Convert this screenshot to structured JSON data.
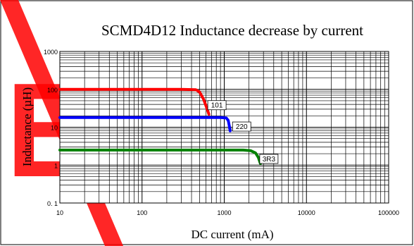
{
  "chart_data": {
    "type": "line",
    "title": "SCMD4D12 Inductance decrease by current",
    "xlabel": "DC current (mA)",
    "ylabel": "Inductance (µH)",
    "x_scale": "log",
    "y_scale": "log",
    "xlim": [
      10,
      100000
    ],
    "ylim": [
      0.1,
      1000
    ],
    "x_ticks": [
      10,
      100,
      1000,
      10000,
      100000
    ],
    "x_tick_labels": [
      "10",
      "100",
      "1000",
      "10000",
      "100000"
    ],
    "y_ticks": [
      0.1,
      1,
      10,
      100,
      1000
    ],
    "y_tick_labels": [
      "0. 1",
      "1",
      "10",
      "100",
      "1000"
    ],
    "grid": true,
    "series": [
      {
        "name": "101",
        "color": "#ff0000",
        "x": [
          10,
          100,
          300,
          450,
          500,
          560,
          620,
          650
        ],
        "y": [
          100,
          100,
          100,
          98,
          85,
          55,
          30,
          22
        ]
      },
      {
        "name": "220",
        "color": "#0000ff",
        "x": [
          10,
          100,
          500,
          900,
          1060,
          1120,
          1150,
          1180
        ],
        "y": [
          18,
          18,
          18,
          18,
          17.5,
          15,
          11,
          8
        ]
      },
      {
        "name": "3R3",
        "color": "#008000",
        "x": [
          10,
          100,
          1000,
          1700,
          2100,
          2400,
          2600,
          2750
        ],
        "y": [
          2.5,
          2.5,
          2.5,
          2.5,
          2.4,
          2.1,
          1.6,
          1.1
        ]
      }
    ]
  },
  "watermark": {
    "text": "EL",
    "color": "#ff0000"
  }
}
